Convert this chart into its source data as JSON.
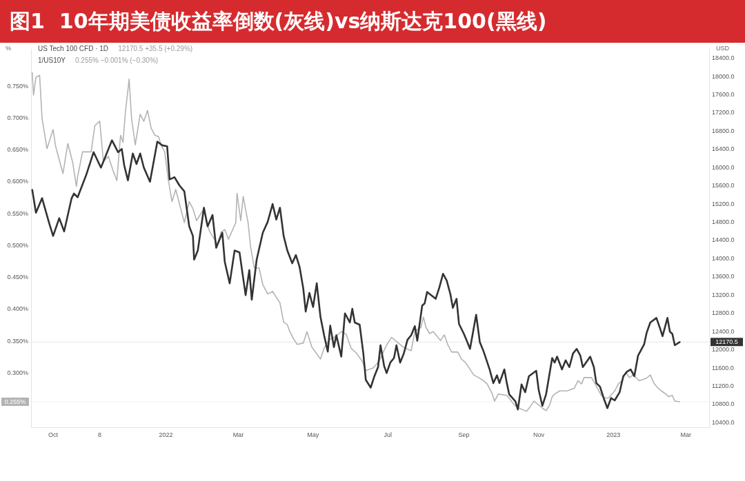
{
  "chart_data": {
    "type": "line",
    "title": "图1  10年期美债收益率倒数(灰线)vs纳斯达克100(黑线)",
    "ylabel": "%",
    "y2label": "USD",
    "xlim": [
      "2021-09-13",
      "2023-03-20"
    ],
    "xticks": [
      {
        "value": "2021-10-01",
        "label": "Oct"
      },
      {
        "value": "2021-11-08",
        "label": "8"
      },
      {
        "value": "2022-01-01",
        "label": "2022"
      },
      {
        "value": "2022-03-01",
        "label": "Mar"
      },
      {
        "value": "2022-05-01",
        "label": "May"
      },
      {
        "value": "2022-07-01",
        "label": "Jul"
      },
      {
        "value": "2022-09-01",
        "label": "Sep"
      },
      {
        "value": "2022-11-01",
        "label": "Nov"
      },
      {
        "value": "2023-01-01",
        "label": "2023"
      },
      {
        "value": "2023-03-01",
        "label": "Mar"
      }
    ],
    "ylim": [
      0.215,
      0.808
    ],
    "yticks": [
      {
        "value": 0.3,
        "label": "0.300%"
      },
      {
        "value": 0.35,
        "label": "0.350%"
      },
      {
        "value": 0.4,
        "label": "0.400%"
      },
      {
        "value": 0.45,
        "label": "0.450%"
      },
      {
        "value": 0.5,
        "label": "0.500%"
      },
      {
        "value": 0.55,
        "label": "0.550%"
      },
      {
        "value": 0.6,
        "label": "0.600%"
      },
      {
        "value": 0.65,
        "label": "0.650%"
      },
      {
        "value": 0.7,
        "label": "0.700%"
      },
      {
        "value": 0.75,
        "label": "0.750%"
      }
    ],
    "y2lim": [
      10300,
      18600
    ],
    "y2ticks": [
      {
        "value": 10400,
        "label": "10400.0"
      },
      {
        "value": 10800,
        "label": "10800.0"
      },
      {
        "value": 11200,
        "label": "11200.0"
      },
      {
        "value": 11600,
        "label": "11600.0"
      },
      {
        "value": 12000,
        "label": "12000.0"
      },
      {
        "value": 12400,
        "label": "12400.0"
      },
      {
        "value": 12800,
        "label": "12800.0"
      },
      {
        "value": 13200,
        "label": "13200.0"
      },
      {
        "value": 13600,
        "label": "13600.0"
      },
      {
        "value": 14000,
        "label": "14000.0"
      },
      {
        "value": 14400,
        "label": "14400.0"
      },
      {
        "value": 14800,
        "label": "14800.0"
      },
      {
        "value": 15200,
        "label": "15200.0"
      },
      {
        "value": 15600,
        "label": "15600.0"
      },
      {
        "value": 16000,
        "label": "16000.0"
      },
      {
        "value": 16400,
        "label": "16400.0"
      },
      {
        "value": 16800,
        "label": "16800.0"
      },
      {
        "value": 17200,
        "label": "17200.0"
      },
      {
        "value": 17600,
        "label": "17600.0"
      },
      {
        "value": 18000,
        "label": "18000.0"
      },
      {
        "value": 18400,
        "label": "18400.0"
      }
    ],
    "series": [
      {
        "color": "#b3b3b3",
        "x": [
          "2021-09-14",
          "2021-09-15",
          "2021-09-17",
          "2021-09-20",
          "2021-09-22",
          "2021-09-26",
          "2021-10-01",
          "2021-10-03",
          "2021-10-09",
          "2021-10-13",
          "2021-10-17",
          "2021-10-20",
          "2021-10-21",
          "2021-10-25",
          "2021-11-01",
          "2021-11-04",
          "2021-11-08",
          "2021-11-11",
          "2021-11-15",
          "2021-11-19",
          "2021-11-22",
          "2021-11-25",
          "2021-11-27",
          "2021-11-29",
          "2021-12-02",
          "2021-12-04",
          "2021-12-07",
          "2021-12-11",
          "2021-12-14",
          "2021-12-17",
          "2021-12-20",
          "2021-12-23",
          "2021-12-26",
          "2021-12-28",
          "2021-12-31",
          "2022-01-03",
          "2022-01-06",
          "2022-01-09",
          "2022-01-16",
          "2022-01-20",
          "2022-01-23",
          "2022-01-26",
          "2022-02-01",
          "2022-02-03",
          "2022-02-06",
          "2022-02-12",
          "2022-02-15",
          "2022-02-18",
          "2022-02-21",
          "2022-02-27",
          "2022-02-28",
          "2022-03-03",
          "2022-03-05",
          "2022-03-09",
          "2022-03-11",
          "2022-03-14",
          "2022-03-18",
          "2022-03-21",
          "2022-03-25",
          "2022-03-29",
          "2022-04-04",
          "2022-04-07",
          "2022-04-10",
          "2022-04-12",
          "2022-04-15",
          "2022-04-18",
          "2022-04-23",
          "2022-04-26",
          "2022-04-30",
          "2022-05-07",
          "2022-05-10",
          "2022-05-14",
          "2022-05-20",
          "2022-05-24",
          "2022-05-28",
          "2022-06-01",
          "2022-06-05",
          "2022-06-10",
          "2022-06-13",
          "2022-06-19",
          "2022-06-24",
          "2022-06-28",
          "2022-06-30",
          "2022-07-04",
          "2022-07-14",
          "2022-07-20",
          "2022-07-23",
          "2022-07-28",
          "2022-07-30",
          "2022-08-01",
          "2022-08-04",
          "2022-08-07",
          "2022-08-13",
          "2022-08-16",
          "2022-08-19",
          "2022-08-22",
          "2022-08-27",
          "2022-08-30",
          "2022-09-02",
          "2022-09-06",
          "2022-09-09",
          "2022-09-13",
          "2022-09-17",
          "2022-09-20",
          "2022-09-24",
          "2022-09-26",
          "2022-09-29",
          "2022-10-06",
          "2022-10-09",
          "2022-10-12",
          "2022-10-16",
          "2022-10-22",
          "2022-10-25",
          "2022-10-28",
          "2022-11-01",
          "2022-11-04",
          "2022-11-07",
          "2022-11-10",
          "2022-11-12",
          "2022-11-14",
          "2022-11-18",
          "2022-11-24",
          "2022-11-30",
          "2022-12-03",
          "2022-12-06",
          "2022-12-08",
          "2022-12-14",
          "2022-12-17",
          "2022-12-19",
          "2022-12-22",
          "2022-12-25",
          "2022-12-28",
          "2023-01-02",
          "2023-01-05",
          "2023-01-08",
          "2023-01-11",
          "2023-01-14",
          "2023-01-17",
          "2023-01-22",
          "2023-01-28",
          "2023-01-31",
          "2023-02-03",
          "2023-02-06",
          "2023-02-09",
          "2023-02-12",
          "2023-02-15",
          "2023-02-18",
          "2023-02-20",
          "2023-02-24"
        ],
        "values": [
          0.771,
          0.736,
          0.764,
          0.767,
          0.699,
          0.652,
          0.682,
          0.656,
          0.613,
          0.66,
          0.63,
          0.593,
          0.608,
          0.647,
          0.647,
          0.688,
          0.695,
          0.632,
          0.64,
          0.617,
          0.602,
          0.673,
          0.662,
          0.71,
          0.761,
          0.699,
          0.658,
          0.706,
          0.695,
          0.712,
          0.684,
          0.673,
          0.671,
          0.658,
          0.647,
          0.602,
          0.569,
          0.588,
          0.536,
          0.569,
          0.558,
          0.539,
          0.558,
          0.536,
          0.521,
          0.502,
          0.521,
          0.525,
          0.51,
          0.536,
          0.582,
          0.539,
          0.577,
          0.536,
          0.499,
          0.465,
          0.465,
          0.439,
          0.424,
          0.428,
          0.41,
          0.38,
          0.376,
          0.365,
          0.354,
          0.345,
          0.347,
          0.365,
          0.341,
          0.322,
          0.339,
          0.352,
          0.358,
          0.365,
          0.361,
          0.339,
          0.332,
          0.319,
          0.304,
          0.308,
          0.319,
          0.336,
          0.344,
          0.356,
          0.34,
          0.335,
          0.365,
          0.372,
          0.388,
          0.372,
          0.362,
          0.365,
          0.351,
          0.36,
          0.344,
          0.333,
          0.333,
          0.322,
          0.317,
          0.306,
          0.297,
          0.293,
          0.288,
          0.283,
          0.268,
          0.256,
          0.267,
          0.265,
          0.258,
          0.25,
          0.245,
          0.24,
          0.247,
          0.256,
          0.25,
          0.245,
          0.241,
          0.25,
          0.263,
          0.267,
          0.272,
          0.272,
          0.276,
          0.288,
          0.283,
          0.293,
          0.293,
          0.283,
          0.276,
          0.265,
          0.261,
          0.261,
          0.272,
          0.283,
          0.288,
          0.301,
          0.293,
          0.297,
          0.288,
          0.292,
          0.297,
          0.284,
          0.277,
          0.272,
          0.268,
          0.263,
          0.265,
          0.256,
          0.255
        ]
      },
      {
        "color": "#333333",
        "axis": "y2",
        "x": [
          "2021-09-14",
          "2021-09-17",
          "2021-09-22",
          "2021-09-28",
          "2021-10-01",
          "2021-10-06",
          "2021-10-10",
          "2021-10-16",
          "2021-10-18",
          "2021-10-21",
          "2021-10-28",
          "2021-11-03",
          "2021-11-09",
          "2021-11-18",
          "2021-11-23",
          "2021-11-26",
          "2021-11-28",
          "2021-12-01",
          "2021-12-05",
          "2021-12-08",
          "2021-12-11",
          "2021-12-14",
          "2021-12-19",
          "2021-12-25",
          "2021-12-29",
          "2022-01-02",
          "2022-01-04",
          "2022-01-08",
          "2022-01-12",
          "2022-01-16",
          "2022-01-20",
          "2022-01-23",
          "2022-01-24",
          "2022-01-27",
          "2022-02-01",
          "2022-02-04",
          "2022-02-08",
          "2022-02-11",
          "2022-02-16",
          "2022-02-18",
          "2022-02-22",
          "2022-02-26",
          "2022-03-02",
          "2022-03-07",
          "2022-03-10",
          "2022-03-12",
          "2022-03-16",
          "2022-03-21",
          "2022-03-25",
          "2022-03-29",
          "2022-04-01",
          "2022-04-04",
          "2022-04-07",
          "2022-04-10",
          "2022-04-14",
          "2022-04-17",
          "2022-04-20",
          "2022-04-23",
          "2022-04-25",
          "2022-04-28",
          "2022-05-01",
          "2022-05-04",
          "2022-05-07",
          "2022-05-10",
          "2022-05-13",
          "2022-05-15",
          "2022-05-18",
          "2022-05-20",
          "2022-05-24",
          "2022-05-27",
          "2022-05-31",
          "2022-06-02",
          "2022-06-04",
          "2022-06-08",
          "2022-06-11",
          "2022-06-13",
          "2022-06-17",
          "2022-06-20",
          "2022-06-23",
          "2022-06-25",
          "2022-06-28",
          "2022-06-30",
          "2022-07-03",
          "2022-07-06",
          "2022-07-08",
          "2022-07-11",
          "2022-07-14",
          "2022-07-17",
          "2022-07-20",
          "2022-07-23",
          "2022-07-25",
          "2022-07-29",
          "2022-07-31",
          "2022-08-02",
          "2022-08-09",
          "2022-08-12",
          "2022-08-15",
          "2022-08-18",
          "2022-08-21",
          "2022-08-23",
          "2022-08-26",
          "2022-08-28",
          "2022-09-01",
          "2022-09-03",
          "2022-09-06",
          "2022-09-09",
          "2022-09-11",
          "2022-09-14",
          "2022-09-17",
          "2022-09-22",
          "2022-09-25",
          "2022-09-28",
          "2022-09-30",
          "2022-10-04",
          "2022-10-06",
          "2022-10-08",
          "2022-10-13",
          "2022-10-15",
          "2022-10-18",
          "2022-10-21",
          "2022-10-24",
          "2022-10-30",
          "2022-11-01",
          "2022-11-04",
          "2022-11-07",
          "2022-11-12",
          "2022-11-14",
          "2022-11-16",
          "2022-11-20",
          "2022-11-23",
          "2022-11-26",
          "2022-11-29",
          "2022-12-02",
          "2022-12-05",
          "2022-12-07",
          "2022-12-13",
          "2022-12-16",
          "2022-12-18",
          "2022-12-21",
          "2022-12-24",
          "2022-12-27",
          "2022-12-30",
          "2023-01-02",
          "2023-01-06",
          "2023-01-09",
          "2023-01-12",
          "2023-01-15",
          "2023-01-18",
          "2023-01-21",
          "2023-01-23",
          "2023-01-26",
          "2023-01-28",
          "2023-01-31",
          "2023-02-05",
          "2023-02-08",
          "2023-02-10",
          "2023-02-14",
          "2023-02-16",
          "2023-02-18",
          "2023-02-20",
          "2023-02-24"
        ],
        "values": [
          15510,
          15010,
          15330,
          14760,
          14500,
          14890,
          14600,
          15320,
          15430,
          15350,
          15840,
          16340,
          16000,
          16600,
          16340,
          16410,
          16050,
          15720,
          16310,
          16080,
          16310,
          16000,
          15690,
          16570,
          16490,
          16470,
          15740,
          15790,
          15610,
          15480,
          14710,
          14500,
          13980,
          14180,
          15120,
          14710,
          14960,
          14240,
          14570,
          13930,
          13460,
          14180,
          14140,
          13200,
          13750,
          13100,
          13980,
          14570,
          14810,
          15200,
          14860,
          15120,
          14500,
          14180,
          13900,
          14080,
          13820,
          13350,
          12840,
          13250,
          12940,
          13460,
          12730,
          12320,
          11960,
          12530,
          12060,
          12320,
          11850,
          12800,
          12600,
          12900,
          12600,
          12550,
          11920,
          11340,
          11170,
          11420,
          11620,
          12100,
          11640,
          11490,
          11720,
          11820,
          12100,
          11720,
          11920,
          12220,
          12320,
          12520,
          12200,
          12970,
          13020,
          13270,
          13120,
          13370,
          13670,
          13520,
          13220,
          12920,
          13120,
          12570,
          12350,
          12220,
          12020,
          12470,
          12770,
          12170,
          11970,
          11570,
          11270,
          11440,
          11270,
          11570,
          11270,
          11020,
          10870,
          10690,
          11240,
          11070,
          11420,
          11540,
          11120,
          10770,
          11020,
          11820,
          11720,
          11850,
          11570,
          11770,
          11620,
          11920,
          12020,
          11870,
          11620,
          11850,
          11620,
          11270,
          11190,
          10940,
          10720,
          10940,
          10890,
          11070,
          11420,
          11520,
          11570,
          11420,
          11870,
          11970,
          12120,
          12370,
          12600,
          12700,
          12470,
          12300,
          12700,
          12400,
          12350,
          12100,
          12170.5
        ]
      }
    ],
    "ref_lines": [
      {
        "axis": "y2",
        "value": 12170.5,
        "label": "12170.5",
        "color": "#e6e6e6"
      },
      {
        "axis": "y",
        "value": 0.255,
        "label": "0.255%",
        "color": "#f0f0f0"
      }
    ],
    "annotations": [
      "US Tech 100 CFD · 1D",
      "12170.5 +35.5 (+0.29%)",
      "1/US10Y",
      "0.255% −0.001% (−0.30%)"
    ],
    "grid": false,
    "legend": false,
    "marker": "none"
  }
}
